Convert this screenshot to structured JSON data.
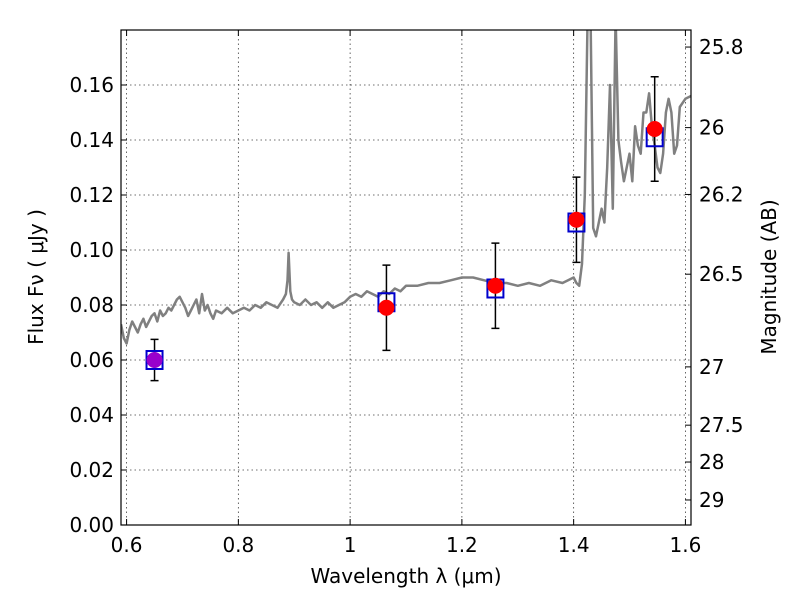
{
  "chart_data": {
    "type": "scatter",
    "xlabel": "Wavelength  λ (μm)",
    "ylabel": "Flux  Fν  ( μJy )",
    "y2label": "Magnitude (AB)",
    "xlim": [
      0.59,
      1.61
    ],
    "ylim": [
      0.0,
      0.18
    ],
    "x_ticks": [
      0.6,
      0.8,
      1.0,
      1.2,
      1.4,
      1.6
    ],
    "x_tick_labels": [
      "0.6",
      "0.8",
      "1",
      "1.2",
      "1.4",
      "1.6"
    ],
    "y_ticks": [
      0.0,
      0.02,
      0.04,
      0.06,
      0.08,
      0.1,
      0.12,
      0.14,
      0.16
    ],
    "y_tick_labels": [
      "0.00",
      "0.02",
      "0.04",
      "0.06",
      "0.08",
      "0.10",
      "0.12",
      "0.14",
      "0.16"
    ],
    "y2_ticks": [
      {
        "label": "25.8",
        "flux": 0.1738
      },
      {
        "label": "26",
        "flux": 0.1445
      },
      {
        "label": "26.2",
        "flux": 0.1202
      },
      {
        "label": "26.5",
        "flux": 0.0912
      },
      {
        "label": "27",
        "flux": 0.0575
      },
      {
        "label": "27.5",
        "flux": 0.0363
      },
      {
        "label": "28",
        "flux": 0.0229
      },
      {
        "label": "29",
        "flux": 0.0091
      }
    ],
    "grid": true,
    "series": [
      {
        "kind": "line",
        "color": "#808080",
        "x": [
          0.59,
          0.595,
          0.6,
          0.605,
          0.61,
          0.615,
          0.62,
          0.625,
          0.63,
          0.635,
          0.64,
          0.645,
          0.65,
          0.655,
          0.66,
          0.665,
          0.67,
          0.675,
          0.68,
          0.685,
          0.69,
          0.695,
          0.7,
          0.705,
          0.71,
          0.715,
          0.72,
          0.725,
          0.73,
          0.735,
          0.74,
          0.745,
          0.75,
          0.755,
          0.76,
          0.77,
          0.78,
          0.79,
          0.8,
          0.81,
          0.82,
          0.83,
          0.84,
          0.85,
          0.86,
          0.87,
          0.88,
          0.885,
          0.888,
          0.89,
          0.893,
          0.896,
          0.9,
          0.91,
          0.92,
          0.93,
          0.94,
          0.95,
          0.96,
          0.97,
          0.98,
          0.99,
          1.0,
          1.01,
          1.02,
          1.03,
          1.04,
          1.05,
          1.06,
          1.07,
          1.08,
          1.09,
          1.1,
          1.12,
          1.14,
          1.16,
          1.18,
          1.2,
          1.22,
          1.24,
          1.26,
          1.28,
          1.3,
          1.32,
          1.34,
          1.36,
          1.38,
          1.39,
          1.4,
          1.405,
          1.41,
          1.415,
          1.42,
          1.425,
          1.43,
          1.435,
          1.44,
          1.445,
          1.45,
          1.455,
          1.46,
          1.465,
          1.47,
          1.475,
          1.48,
          1.485,
          1.49,
          1.495,
          1.5,
          1.505,
          1.51,
          1.515,
          1.52,
          1.525,
          1.53,
          1.535,
          1.54,
          1.545,
          1.55,
          1.555,
          1.56,
          1.565,
          1.57,
          1.575,
          1.58,
          1.585,
          1.59,
          1.6,
          1.61
        ],
        "y": [
          0.073,
          0.068,
          0.066,
          0.071,
          0.074,
          0.072,
          0.07,
          0.073,
          0.075,
          0.072,
          0.074,
          0.076,
          0.077,
          0.074,
          0.078,
          0.076,
          0.077,
          0.079,
          0.078,
          0.08,
          0.082,
          0.083,
          0.081,
          0.079,
          0.076,
          0.078,
          0.08,
          0.082,
          0.077,
          0.084,
          0.078,
          0.08,
          0.077,
          0.075,
          0.078,
          0.077,
          0.079,
          0.077,
          0.078,
          0.079,
          0.078,
          0.08,
          0.079,
          0.081,
          0.08,
          0.079,
          0.082,
          0.084,
          0.089,
          0.099,
          0.085,
          0.082,
          0.081,
          0.08,
          0.082,
          0.08,
          0.081,
          0.079,
          0.081,
          0.079,
          0.08,
          0.081,
          0.083,
          0.084,
          0.083,
          0.085,
          0.084,
          0.083,
          0.085,
          0.084,
          0.086,
          0.085,
          0.087,
          0.087,
          0.088,
          0.088,
          0.089,
          0.09,
          0.09,
          0.089,
          0.088,
          0.088,
          0.087,
          0.088,
          0.087,
          0.089,
          0.088,
          0.089,
          0.09,
          0.088,
          0.087,
          0.095,
          0.12,
          0.185,
          0.19,
          0.108,
          0.105,
          0.11,
          0.115,
          0.11,
          0.13,
          0.16,
          0.115,
          0.185,
          0.14,
          0.132,
          0.125,
          0.13,
          0.135,
          0.125,
          0.145,
          0.138,
          0.135,
          0.15,
          0.15,
          0.157,
          0.145,
          0.138,
          0.13,
          0.128,
          0.135,
          0.15,
          0.155,
          0.15,
          0.135,
          0.138,
          0.152,
          0.155,
          0.156
        ]
      },
      {
        "kind": "errorbar",
        "color": "#000000",
        "x": [
          0.65,
          1.065,
          1.26,
          1.405,
          1.545
        ],
        "y": [
          0.06,
          0.079,
          0.087,
          0.111,
          0.144
        ],
        "yerr": [
          0.0075,
          0.0155,
          0.0155,
          0.0155,
          0.019
        ]
      },
      {
        "kind": "marker-square-open",
        "color": "#0000cc",
        "x": [
          0.65,
          1.065,
          1.26,
          1.405,
          1.545
        ],
        "y": [
          0.06,
          0.081,
          0.086,
          0.11,
          0.141
        ]
      },
      {
        "kind": "marker-circle-filled",
        "color": "#ff0000",
        "x": [
          1.065,
          1.26,
          1.405,
          1.545
        ],
        "y": [
          0.079,
          0.087,
          0.111,
          0.144
        ]
      },
      {
        "kind": "marker-circle-filled",
        "color": "#9900cc",
        "x": [
          0.65
        ],
        "y": [
          0.06
        ]
      }
    ]
  }
}
